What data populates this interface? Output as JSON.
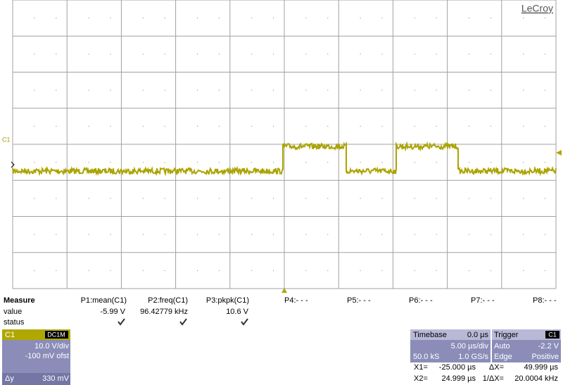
{
  "brand": "LeCroy",
  "channel_marker": "C1",
  "measure": {
    "header": [
      "Measure",
      "P1:mean(C1)",
      "P2:freq(C1)",
      "P3:pkpk(C1)",
      "P4:- - -",
      "P5:- - -",
      "P6:- - -",
      "P7:- - -",
      "P8:- - -"
    ],
    "value_label": "value",
    "values": [
      "-5.99 V",
      "96.42779 kHz",
      "10.6 V"
    ],
    "status_label": "status"
  },
  "channel_panel": {
    "name": "C1",
    "coupling": "DC1M",
    "scale": "10.0 V/div",
    "offset": "-100 mV ofst",
    "delta_label": "Δy",
    "delta_value": "330 mV"
  },
  "timebase": {
    "title": "Timebase",
    "delay": "0.0 µs",
    "scale": "5.00 µs/div",
    "samples": "50.0 kS",
    "rate": "1.0 GS/s"
  },
  "trigger": {
    "title": "Trigger",
    "channel": "C1",
    "mode": "Auto",
    "level": "-2.2 V",
    "type": "Edge",
    "slope": "Positive"
  },
  "cursors": [
    {
      "label": "X1=",
      "value": "-25.000 µs",
      "delta_label": "ΔX=",
      "delta_value": "49.999 µs"
    },
    {
      "label": "X2=",
      "value": "24.999 µs",
      "delta_label": "1/ΔX=",
      "delta_value": "20.0004 kHz"
    }
  ]
}
